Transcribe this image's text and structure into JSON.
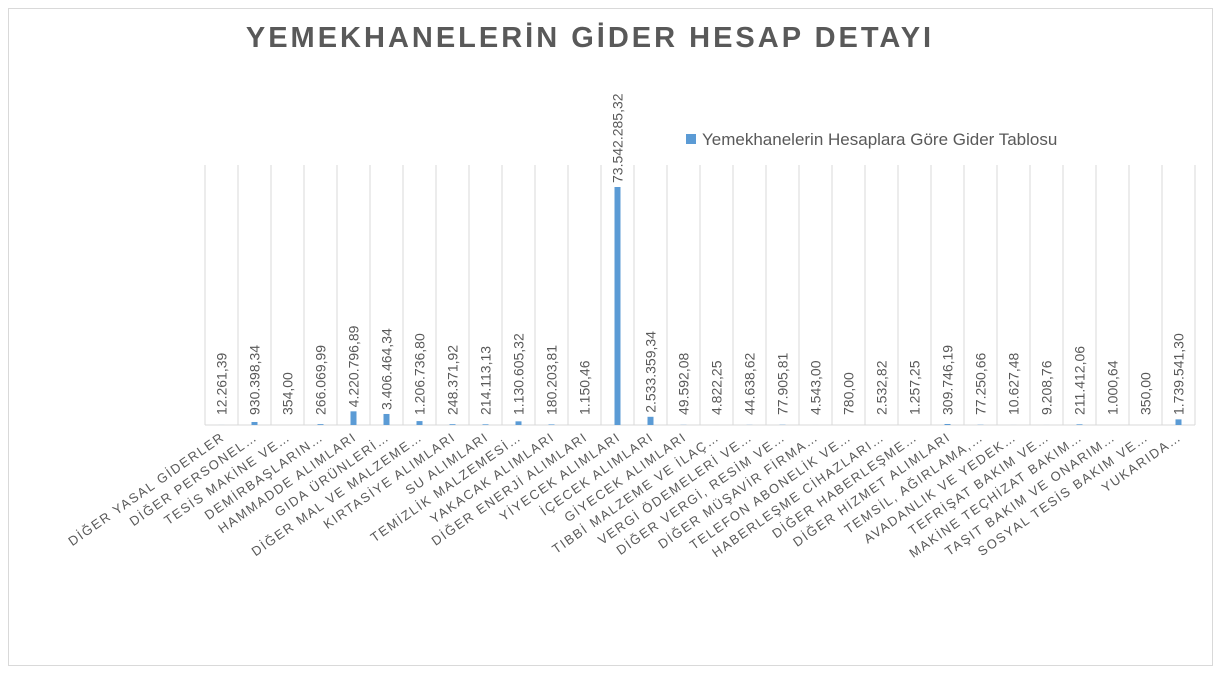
{
  "chart_data": {
    "type": "bar",
    "title": "YEMEKHANELERİN GİDER HESAP DETAYI",
    "categories": [
      "DİĞER YASAL GİDERLER",
      "DİĞER PERSONEL…",
      "TESİS MAKİNE VE…",
      "DEMİRBAŞLARIN…",
      "HAMMADDE ALIMLARI",
      "GIDA ÜRÜNLERİ…",
      "DİĞER MAL VE MALZEME…",
      "KIRTASİYE ALIMLARI",
      "SU ALIMLARI",
      "TEMİZLİK MALZEMESİ…",
      "YAKACAK ALIMLARI",
      "DİĞER ENERJİ ALIMLARI",
      "YİYECEK ALIMLARI",
      "İÇECEK ALIMLARI",
      "GİYECEK ALIMLARI",
      "TIBBİ MALZEME VE İLAÇ…",
      "VERGİ ÖDEMELERİ VE…",
      "DİĞER VERGİ, RESİM VE…",
      "DİĞER MÜŞAVİR FİRMA…",
      "TELEFON ABONELİK VE…",
      "HABERLEŞME CİHAZLARI…",
      "DİĞER HABERLEŞME…",
      "DİĞER HİZMET ALIMLARI",
      "TEMSİL, AĞIRLAMA,…",
      "AVADANLIK VE YEDEK…",
      "TEFRİŞAT BAKIM VE…",
      "MAKİNE TEÇHİZAT BAKIM…",
      "TAŞIT BAKIM VE ONARIM…",
      "SOSYAL TESİS BAKIM VE…",
      "YUKARIDA…"
    ],
    "series": [
      {
        "name": "Yemekhanelerin Hesaplara Göre Gider Tablosu",
        "color": "#5b9bd5",
        "values": [
          12261.39,
          930398.34,
          354.0,
          266069.99,
          4220796.89,
          3406464.34,
          1206736.8,
          248371.92,
          214113.13,
          1130605.32,
          180203.81,
          1150.46,
          73542285.32,
          2533359.34,
          49592.08,
          4822.25,
          44638.62,
          77905.81,
          4543.0,
          780.0,
          2532.82,
          1257.25,
          309746.19,
          77250.66,
          10627.48,
          9208.76,
          211412.06,
          1000.64,
          350.0,
          1739541.3
        ],
        "value_labels": [
          "12.261,39",
          "930.398,34",
          "354,00",
          "266.069,99",
          "4.220.796,89",
          "3.406.464,34",
          "1.206.736,80",
          "248.371,92",
          "214.113,13",
          "1.130.605,32",
          "180.203,81",
          "1.150,46",
          "73.542.285,32",
          "2.533.359,34",
          "49.592,08",
          "4.822,25",
          "44.638,62",
          "77.905,81",
          "4.543,00",
          "780,00",
          "2.532,82",
          "1.257,25",
          "309.746,19",
          "77.250,66",
          "10.627,48",
          "9.208,76",
          "211.412,06",
          "1.000,64",
          "350,00",
          "1.739.541,30"
        ]
      }
    ]
  }
}
